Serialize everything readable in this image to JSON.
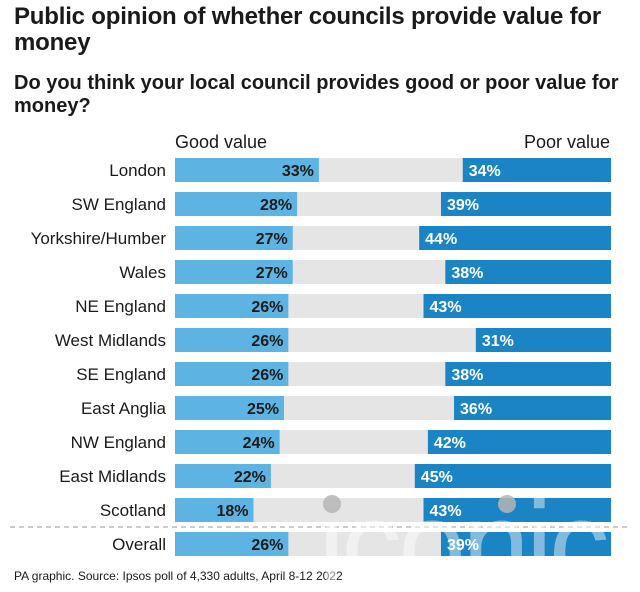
{
  "title": "Public opinion of whether councils provide value for money",
  "subtitle": "Do you think your local council provides good or poor value for money?",
  "source": "PA graphic. Source: Ipsos poll of 4,330 adults, April 8-12 2022",
  "watermark": "iconic",
  "colors": {
    "good": "#5db4e3",
    "poor": "#1a84c4",
    "track": "#e5e5e6",
    "divider": "#9a9a9a"
  },
  "chart_data": {
    "type": "bar",
    "title": "Public opinion of whether councils provide value for money",
    "subtitle": "Do you think your local council provides good or poor value for money?",
    "xlabel": "",
    "ylabel": "",
    "xlim": [
      0,
      100
    ],
    "categories": [
      "London",
      "SW England",
      "Yorkshire/Humber",
      "Wales",
      "NE England",
      "West Midlands",
      "SE England",
      "East Anglia",
      "NW England",
      "East Midlands",
      "Scotland",
      "Overall"
    ],
    "series": [
      {
        "name": "Good value",
        "values": [
          33,
          28,
          27,
          27,
          26,
          26,
          26,
          25,
          24,
          22,
          18,
          26
        ]
      },
      {
        "name": "Poor value",
        "values": [
          34,
          39,
          44,
          38,
          43,
          31,
          38,
          36,
          42,
          45,
          43,
          39
        ]
      }
    ],
    "value_suffix": "%"
  }
}
